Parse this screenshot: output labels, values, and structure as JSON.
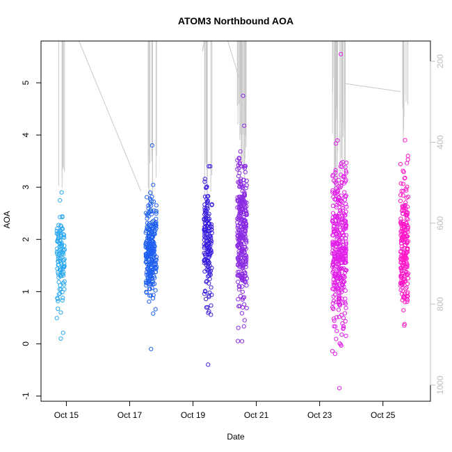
{
  "chart_data": {
    "type": "scatter",
    "title": "ATOM3 Northbound AOA",
    "xlabel": "Date",
    "ylabel": "AOA",
    "x_ticks": [
      {
        "day": 15,
        "label": "Oct 15"
      },
      {
        "day": 17,
        "label": "Oct 17"
      },
      {
        "day": 19,
        "label": "Oct 19"
      },
      {
        "day": 21,
        "label": "Oct 21"
      },
      {
        "day": 23,
        "label": "Oct 23"
      },
      {
        "day": 25,
        "label": "Oct 25"
      }
    ],
    "y_ticks": [
      -1,
      0,
      1,
      2,
      3,
      4,
      5
    ],
    "y_tick_labels": [
      "-1",
      "0",
      "1",
      "2",
      "3",
      "4",
      "5"
    ],
    "y2_ticks": [
      200,
      400,
      600,
      800,
      1000
    ],
    "y2_tick_labels": [
      "200",
      "400",
      "600",
      "800",
      "1000"
    ],
    "y2_reversed": true,
    "xlim": [
      14.2,
      26.5
    ],
    "ylim": [
      -1.1,
      5.8
    ],
    "y2lim": [
      1040,
      150
    ],
    "grid": false,
    "colors": {
      "points_start": "#29b6f6",
      "points_mid": "#1f3fe0",
      "points_mid2": "#8a2be2",
      "points_end": "#ff1aca",
      "trace": "#c8c8c8",
      "right_axis": "#bdbdbd"
    },
    "clusters": [
      {
        "x_range": [
          14.7,
          14.95
        ],
        "y_center": 1.6,
        "y_spread": 0.5,
        "y_min": 0.1,
        "y_max": 2.9,
        "n": 110,
        "color": "#29a8f0"
      },
      {
        "x_range": [
          17.5,
          17.85
        ],
        "y_center": 1.8,
        "y_spread": 0.45,
        "y_min": -0.1,
        "y_max": 3.8,
        "n": 260,
        "color": "#1f5ff0"
      },
      {
        "x_range": [
          19.35,
          19.6
        ],
        "y_center": 1.9,
        "y_spread": 0.55,
        "y_min": -0.4,
        "y_max": 3.4,
        "n": 170,
        "color": "#3a1fe0"
      },
      {
        "x_range": [
          20.4,
          20.7
        ],
        "y_center": 2.1,
        "y_spread": 0.7,
        "y_min": 0.05,
        "y_max": 4.75,
        "n": 300,
        "color": "#8a2be2"
      },
      {
        "x_range": [
          23.4,
          23.85
        ],
        "y_center": 1.8,
        "y_spread": 0.75,
        "y_min": -0.85,
        "y_max": 5.55,
        "n": 380,
        "color": "#e11fe8"
      },
      {
        "x_range": [
          25.55,
          25.8
        ],
        "y_center": 1.9,
        "y_spread": 0.65,
        "y_min": 0.35,
        "y_max": 3.9,
        "n": 210,
        "color": "#ff18c8"
      }
    ],
    "trace_segments": [
      {
        "from": [
          15.4,
          150
        ],
        "to": [
          17.35,
          520
        ]
      },
      {
        "from": [
          19.35,
          150
        ],
        "to": [
          19.3,
          175
        ]
      },
      {
        "from": [
          19.3,
          175
        ],
        "to": [
          19.35,
          160
        ]
      },
      {
        "from": [
          20.1,
          150
        ],
        "to": [
          20.45,
          240
        ]
      },
      {
        "from": [
          23.8,
          255
        ],
        "to": [
          25.55,
          275
        ]
      }
    ],
    "trace_spikes": [
      {
        "x_range": [
          14.75,
          14.95
        ],
        "top": 150,
        "bottom_min": 450,
        "bottom_max": 560,
        "n": 6
      },
      {
        "x_range": [
          17.5,
          17.85
        ],
        "top": 150,
        "bottom_min": 420,
        "bottom_max": 560,
        "n": 9
      },
      {
        "x_range": [
          19.35,
          19.6
        ],
        "top": 150,
        "bottom_min": 420,
        "bottom_max": 560,
        "n": 8
      },
      {
        "x_range": [
          20.4,
          20.7
        ],
        "top": 150,
        "bottom_min": 280,
        "bottom_max": 520,
        "n": 22
      },
      {
        "x_range": [
          23.4,
          23.85
        ],
        "top": 150,
        "bottom_min": 230,
        "bottom_max": 560,
        "n": 26
      },
      {
        "x_range": [
          25.6,
          25.8
        ],
        "top": 150,
        "bottom_min": 260,
        "bottom_max": 420,
        "n": 8
      }
    ]
  }
}
